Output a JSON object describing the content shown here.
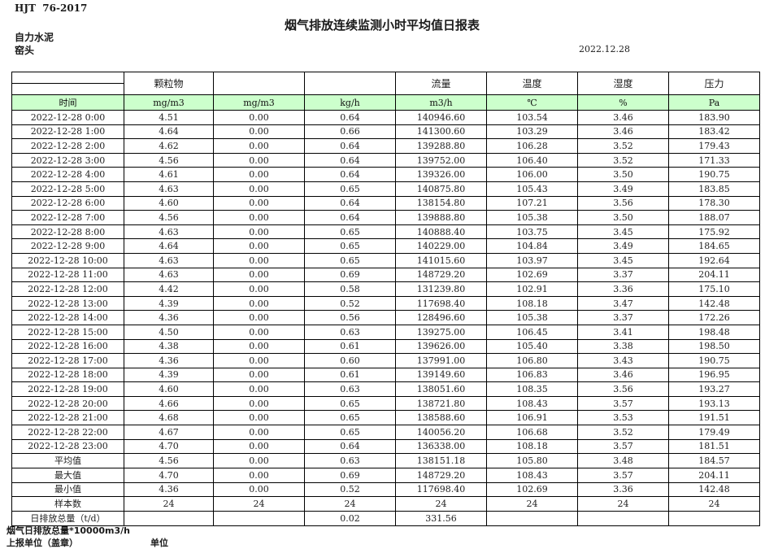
{
  "page": {
    "doc_code": "HJT  76-2017",
    "title": "烟气排放连续监测小时平均值日报表",
    "company": "自力水泥",
    "monitor_point": "窑头",
    "report_date": "2022.12.28"
  },
  "table": {
    "group_headers": [
      "",
      "颗粒物",
      "",
      "",
      "流量",
      "温度",
      "湿度",
      "压力"
    ],
    "unit_row": [
      "时间",
      "mg/m3",
      "mg/m3",
      "kg/h",
      "m3/h",
      "℃",
      "%",
      "Pa"
    ],
    "rows": [
      [
        "2022-12-28 0:00",
        "4.51",
        "0.00",
        "0.64",
        "140946.60",
        "103.54",
        "3.46",
        "183.90"
      ],
      [
        "2022-12-28 1:00",
        "4.64",
        "0.00",
        "0.66",
        "141300.60",
        "103.29",
        "3.46",
        "183.42"
      ],
      [
        "2022-12-28 2:00",
        "4.62",
        "0.00",
        "0.64",
        "139288.80",
        "106.28",
        "3.52",
        "179.43"
      ],
      [
        "2022-12-28 3:00",
        "4.56",
        "0.00",
        "0.64",
        "139752.00",
        "106.40",
        "3.52",
        "171.33"
      ],
      [
        "2022-12-28 4:00",
        "4.61",
        "0.00",
        "0.64",
        "139326.00",
        "106.00",
        "3.50",
        "190.75"
      ],
      [
        "2022-12-28 5:00",
        "4.63",
        "0.00",
        "0.65",
        "140875.80",
        "105.43",
        "3.49",
        "183.85"
      ],
      [
        "2022-12-28 6:00",
        "4.60",
        "0.00",
        "0.64",
        "138154.80",
        "107.21",
        "3.56",
        "178.30"
      ],
      [
        "2022-12-28 7:00",
        "4.56",
        "0.00",
        "0.64",
        "139888.80",
        "105.38",
        "3.50",
        "188.07"
      ],
      [
        "2022-12-28 8:00",
        "4.63",
        "0.00",
        "0.65",
        "140888.40",
        "103.75",
        "3.45",
        "175.92"
      ],
      [
        "2022-12-28 9:00",
        "4.64",
        "0.00",
        "0.65",
        "140229.00",
        "104.84",
        "3.49",
        "184.65"
      ],
      [
        "2022-12-28 10:00",
        "4.63",
        "0.00",
        "0.65",
        "141015.60",
        "103.97",
        "3.45",
        "192.64"
      ],
      [
        "2022-12-28 11:00",
        "4.63",
        "0.00",
        "0.69",
        "148729.20",
        "102.69",
        "3.37",
        "204.11"
      ],
      [
        "2022-12-28 12:00",
        "4.42",
        "0.00",
        "0.58",
        "131239.80",
        "102.91",
        "3.36",
        "175.10"
      ],
      [
        "2022-12-28 13:00",
        "4.39",
        "0.00",
        "0.52",
        "117698.40",
        "108.18",
        "3.47",
        "142.48"
      ],
      [
        "2022-12-28 14:00",
        "4.36",
        "0.00",
        "0.56",
        "128496.60",
        "105.38",
        "3.37",
        "172.26"
      ],
      [
        "2022-12-28 15:00",
        "4.50",
        "0.00",
        "0.63",
        "139275.00",
        "106.45",
        "3.41",
        "198.48"
      ],
      [
        "2022-12-28 16:00",
        "4.38",
        "0.00",
        "0.61",
        "139626.00",
        "105.40",
        "3.38",
        "198.50"
      ],
      [
        "2022-12-28 17:00",
        "4.36",
        "0.00",
        "0.60",
        "137991.00",
        "106.80",
        "3.43",
        "190.75"
      ],
      [
        "2022-12-28 18:00",
        "4.39",
        "0.00",
        "0.61",
        "139149.60",
        "106.83",
        "3.46",
        "196.95"
      ],
      [
        "2022-12-28 19:00",
        "4.60",
        "0.00",
        "0.63",
        "138051.60",
        "108.35",
        "3.56",
        "193.27"
      ],
      [
        "2022-12-28 20:00",
        "4.66",
        "0.00",
        "0.65",
        "138721.80",
        "108.43",
        "3.57",
        "193.13"
      ],
      [
        "2022-12-28 21:00",
        "4.68",
        "0.00",
        "0.65",
        "138588.60",
        "106.91",
        "3.53",
        "191.51"
      ],
      [
        "2022-12-28 22:00",
        "4.67",
        "0.00",
        "0.65",
        "140056.20",
        "106.68",
        "3.52",
        "179.49"
      ],
      [
        "2022-12-28 23:00",
        "4.70",
        "0.00",
        "0.64",
        "136338.00",
        "108.18",
        "3.57",
        "181.51"
      ]
    ],
    "summary_rows": [
      [
        "平均值",
        "4.56",
        "0.00",
        "0.63",
        "138151.18",
        "105.80",
        "3.48",
        "184.57"
      ],
      [
        "最大值",
        "4.70",
        "0.00",
        "0.69",
        "148729.20",
        "108.43",
        "3.57",
        "204.11"
      ],
      [
        "最小值",
        "4.36",
        "0.00",
        "0.52",
        "117698.40",
        "102.69",
        "3.36",
        "142.48"
      ],
      [
        "样本数",
        "24",
        "24",
        "24",
        "24",
        "24",
        "24",
        "24"
      ],
      [
        "日排放总量（t/d）",
        "",
        "",
        "0.02",
        "331.56",
        "",
        "",
        ""
      ]
    ]
  },
  "footer": {
    "total_note": "烟气日排放总量*10000m3/h",
    "report_unit_label": "上报单位（盖章）",
    "unit_label": "单位"
  },
  "colors": {
    "unit_row_green": "#ccffcc",
    "border": "#000000"
  }
}
